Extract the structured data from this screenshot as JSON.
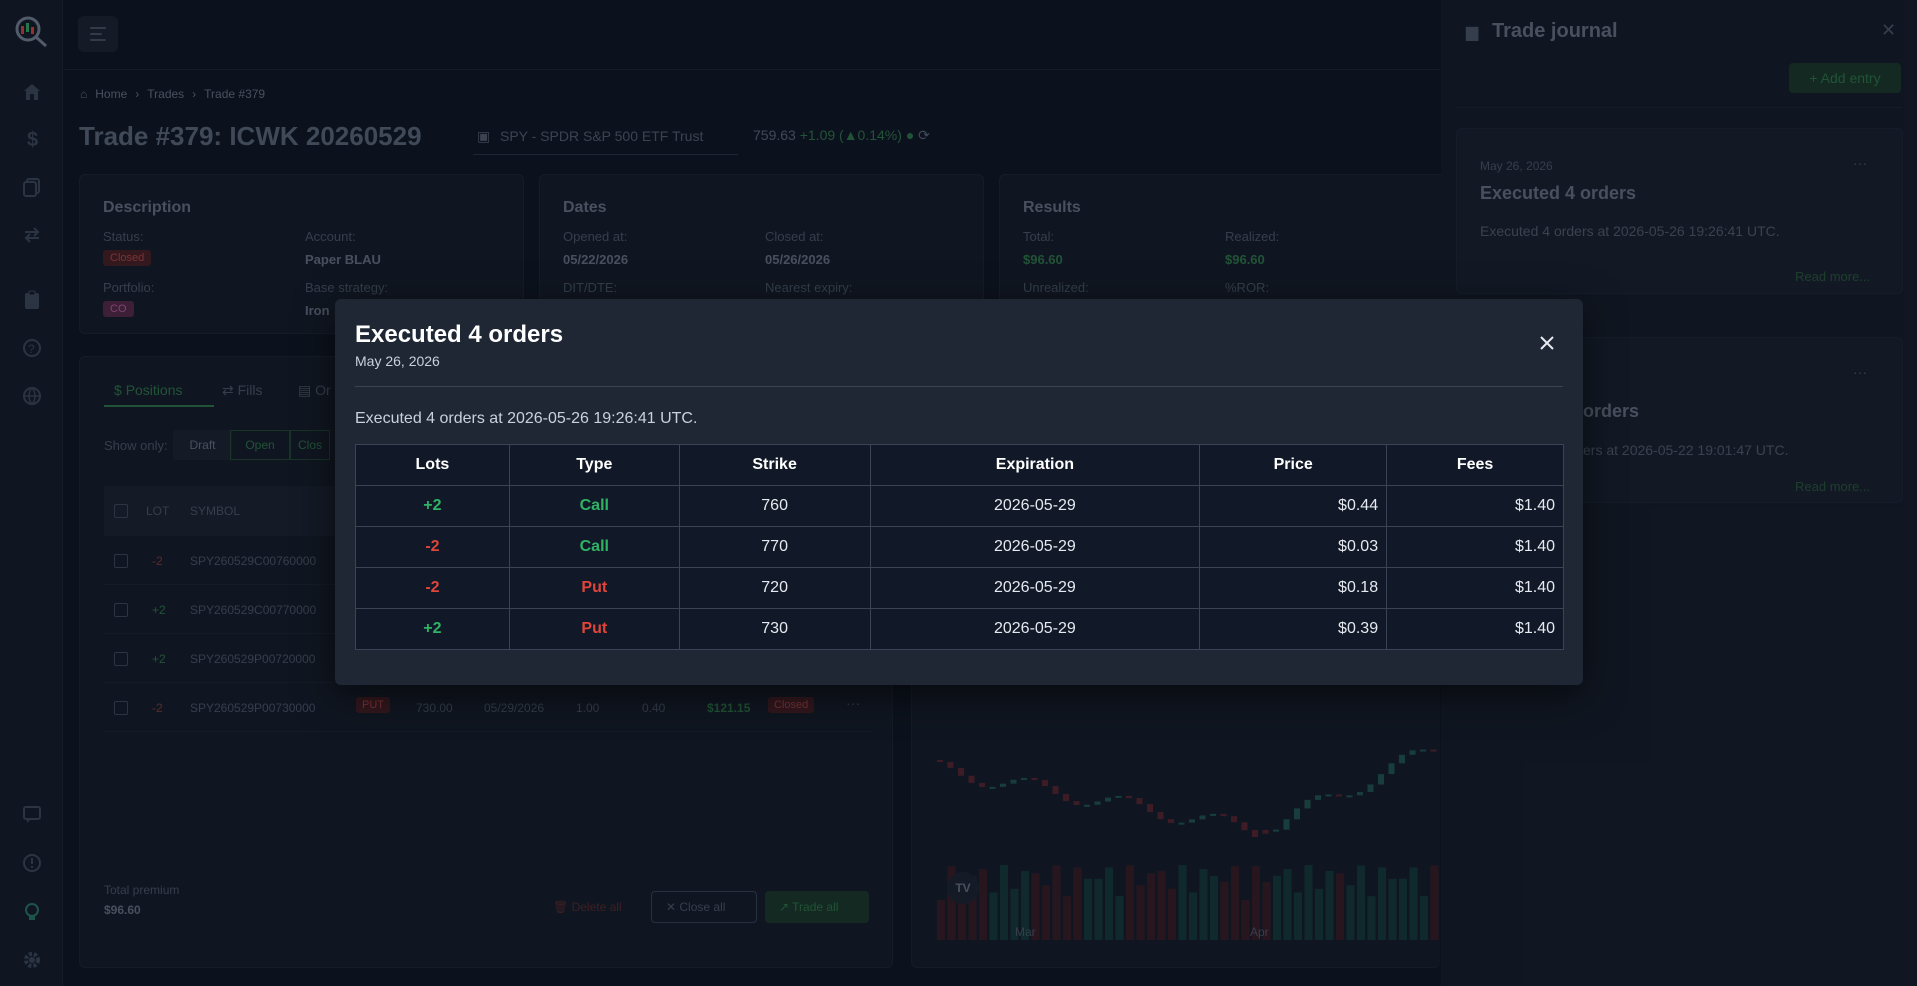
{
  "nav": {
    "breadcrumb": [
      "Home",
      "Trades",
      "Trade #379"
    ]
  },
  "page": {
    "title": "Trade #379: ICWK 20260529",
    "ticker": "SPY - SPDR S&P 500 ETF Trust",
    "price": "759.63",
    "change": "+1.09 (▲0.14%)"
  },
  "description": {
    "heading": "Description",
    "status_label": "Status:",
    "status": "Closed",
    "account_label": "Account:",
    "account": "Paper BLAU",
    "portfolio_label": "Portfolio:",
    "portfolio": "CO",
    "strategy_label": "Base strategy:",
    "strategy": "Iron"
  },
  "dates": {
    "heading": "Dates",
    "opened_label": "Opened at:",
    "opened": "05/22/2026",
    "closed_label": "Closed at:",
    "closed": "05/26/2026",
    "dit_label": "DIT/DTE:",
    "expiry_label": "Nearest expiry:"
  },
  "results": {
    "heading": "Results",
    "total_label": "Total:",
    "total": "$96.60",
    "realized_label": "Realized:",
    "realized": "$96.60",
    "unrealized_label": "Unrealized:",
    "ror_label": "%ROR:"
  },
  "positions": {
    "tabs": [
      "Positions",
      "Fills",
      "Or"
    ],
    "show_only_label": "Show only:",
    "filters": [
      "Draft",
      "Open",
      "Clos"
    ],
    "headers": [
      "LOT",
      "SYMBOL"
    ],
    "rows": [
      {
        "lot": "-2",
        "symbol": "SPY260529C00760000"
      },
      {
        "lot": "+2",
        "symbol": "SPY260529C00770000"
      },
      {
        "lot": "+2",
        "symbol": "SPY260529P00720000"
      },
      {
        "lot": "-2",
        "symbol": "SPY260529P00730000",
        "type": "PUT",
        "strike": "730.00",
        "exp": "05/29/2026",
        "a": "1.00",
        "b": "0.40",
        "pl": "$121.15",
        "status": "Closed"
      }
    ],
    "total_premium_label": "Total premium",
    "total_premium": "$96.60",
    "buttons": {
      "delete_all": "Delete all",
      "close_all": "Close all",
      "trade_all": "Trade all"
    }
  },
  "chart": {
    "x_labels": [
      "Mar",
      "Apr"
    ]
  },
  "journal": {
    "title": "Trade journal",
    "add_entry": "Add entry",
    "entries": [
      {
        "date": "May 26, 2026",
        "title": "Executed 4 orders",
        "text": "Executed 4 orders at 2026-05-26 19:26:41 UTC.",
        "more": "Read more..."
      },
      {
        "date": "",
        "title": "orders",
        "text": "ers at 2026-05-22 19:01:47 UTC.",
        "more": "Read more..."
      }
    ]
  },
  "modal": {
    "title": "Executed 4 orders",
    "date": "May 26, 2026",
    "description": "Executed 4 orders at 2026-05-26 19:26:41 UTC.",
    "columns": [
      "Lots",
      "Type",
      "Strike",
      "Expiration",
      "Price",
      "Fees"
    ],
    "rows": [
      {
        "lots": "+2",
        "type": "Call",
        "strike": "760",
        "expiration": "2026-05-29",
        "price": "$0.44",
        "fees": "$1.40"
      },
      {
        "lots": "-2",
        "type": "Call",
        "strike": "770",
        "expiration": "2026-05-29",
        "price": "$0.03",
        "fees": "$1.40"
      },
      {
        "lots": "-2",
        "type": "Put",
        "strike": "720",
        "expiration": "2026-05-29",
        "price": "$0.18",
        "fees": "$1.40"
      },
      {
        "lots": "+2",
        "type": "Put",
        "strike": "730",
        "expiration": "2026-05-29",
        "price": "$0.39",
        "fees": "$1.40"
      }
    ]
  }
}
